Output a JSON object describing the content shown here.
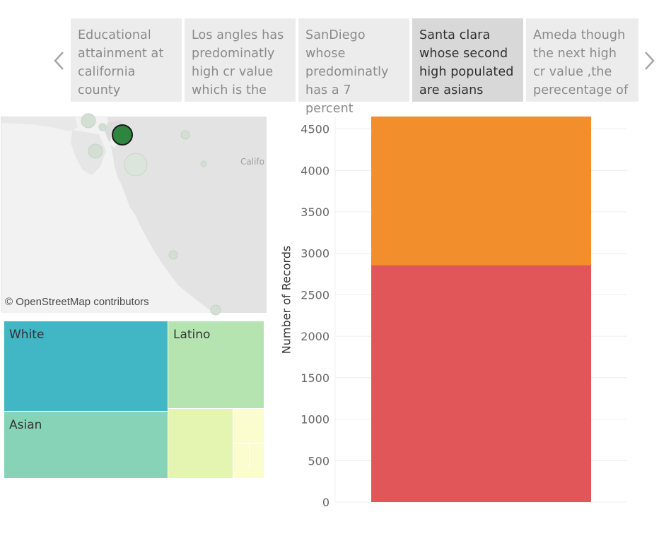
{
  "story": {
    "points": [
      {
        "caption": "Educational attainment at california county"
      },
      {
        "caption": "Los angles has predominatly high cr value which is the"
      },
      {
        "caption": "SanDiego whose predominatly has a 7 percent"
      },
      {
        "caption": "Santa clara whose second high populated are asians"
      },
      {
        "caption": "Ameda though the next high cr value ,the perecentage of"
      }
    ],
    "active_index": 3,
    "prev_icon": "chevron-left-icon",
    "next_icon": "chevron-right-icon"
  },
  "map": {
    "attribution": "© OpenStreetMap contributors",
    "place_label": "Califo",
    "selected_color": "#2e8540"
  },
  "treemap": {
    "tiles": [
      {
        "label": "White",
        "color": "#41b6c4"
      },
      {
        "label": "Latino",
        "color": "#b5e4b0"
      },
      {
        "label": "Asian",
        "color": "#86d3b8"
      },
      {
        "label": "",
        "color": "#e3f5b1"
      },
      {
        "label": "",
        "color": "#fbfdcf"
      }
    ]
  },
  "chart_data": {
    "type": "bar",
    "stacked": true,
    "categories": [
      ""
    ],
    "series": [
      {
        "values": [
          2860
        ],
        "color": "#e15759"
      },
      {
        "values": [
          1800
        ],
        "color": "#f28e2b"
      }
    ],
    "ylabel": "Number of Records",
    "ylim": [
      0,
      4650
    ],
    "yticks": [
      0,
      500,
      1000,
      1500,
      2000,
      2500,
      3000,
      3500,
      4000,
      4500
    ],
    "grid": true
  }
}
